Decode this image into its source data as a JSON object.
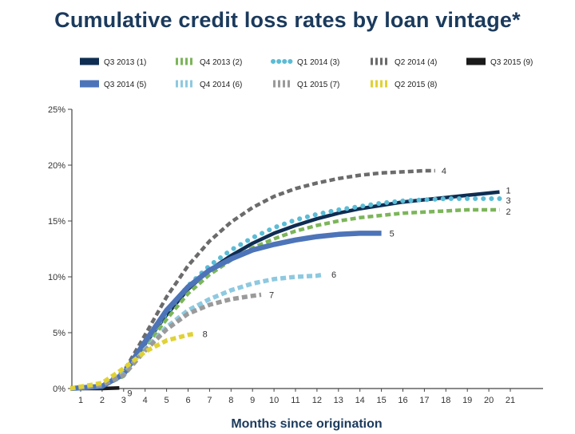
{
  "chart_data": {
    "type": "line",
    "title": "Cumulative credit loss rates by loan vintage*",
    "xlabel": "Months since origination",
    "ylabel": "",
    "x_ticks": [
      "1",
      "2",
      "3",
      "4",
      "5",
      "6",
      "7",
      "8",
      "9",
      "10",
      "11",
      "12",
      "13",
      "14",
      "15",
      "16",
      "17",
      "18",
      "19",
      "20",
      "21"
    ],
    "y_ticks": [
      "0%",
      "5%",
      "10%",
      "15%",
      "20%",
      "25%"
    ],
    "xlim": [
      0.5,
      21.3
    ],
    "ylim": [
      0,
      25
    ],
    "grid": false,
    "legend_position": "top",
    "series": [
      {
        "name": "Q3 2013 (1)",
        "end_label": "1",
        "color": "#0f2d52",
        "style": "solid",
        "width": 4.5,
        "points": [
          [
            0.5,
            0
          ],
          [
            2,
            0.2
          ],
          [
            3,
            1.2
          ],
          [
            4,
            4.0
          ],
          [
            5,
            6.6
          ],
          [
            6,
            8.9
          ],
          [
            7,
            10.6
          ],
          [
            8,
            11.9
          ],
          [
            9,
            13.0
          ],
          [
            10,
            13.9
          ],
          [
            11,
            14.6
          ],
          [
            12,
            15.2
          ],
          [
            13,
            15.7
          ],
          [
            14,
            16.1
          ],
          [
            15,
            16.4
          ],
          [
            16,
            16.7
          ],
          [
            17,
            16.9
          ],
          [
            18,
            17.1
          ],
          [
            19,
            17.3
          ],
          [
            20,
            17.5
          ],
          [
            20.5,
            17.6
          ]
        ]
      },
      {
        "name": "Q4 2013 (2)",
        "end_label": "2",
        "color": "#7cb55a",
        "style": "dash",
        "width": 4.5,
        "points": [
          [
            0.5,
            0
          ],
          [
            2,
            0.2
          ],
          [
            3,
            1.1
          ],
          [
            4,
            3.7
          ],
          [
            5,
            6.2
          ],
          [
            6,
            8.5
          ],
          [
            7,
            10.2
          ],
          [
            8,
            11.5
          ],
          [
            9,
            12.6
          ],
          [
            10,
            13.4
          ],
          [
            11,
            14.1
          ],
          [
            12,
            14.6
          ],
          [
            13,
            15.0
          ],
          [
            14,
            15.3
          ],
          [
            15,
            15.5
          ],
          [
            16,
            15.7
          ],
          [
            17,
            15.8
          ],
          [
            18,
            15.9
          ],
          [
            19,
            16.0
          ],
          [
            20,
            16.0
          ],
          [
            20.5,
            16.0
          ]
        ]
      },
      {
        "name": "Q1 2014 (3)",
        "end_label": "3",
        "color": "#5bbcd6",
        "style": "dot",
        "width": 6,
        "points": [
          [
            0.5,
            0
          ],
          [
            2,
            0.2
          ],
          [
            3,
            1.2
          ],
          [
            4,
            4.1
          ],
          [
            5,
            6.8
          ],
          [
            6,
            9.2
          ],
          [
            7,
            11.0
          ],
          [
            8,
            12.4
          ],
          [
            9,
            13.5
          ],
          [
            10,
            14.4
          ],
          [
            11,
            15.1
          ],
          [
            12,
            15.6
          ],
          [
            13,
            16.0
          ],
          [
            14,
            16.3
          ],
          [
            15,
            16.6
          ],
          [
            16,
            16.8
          ],
          [
            17,
            16.9
          ],
          [
            18,
            17.0
          ],
          [
            19,
            17.0
          ],
          [
            20,
            17.0
          ],
          [
            20.5,
            17.0
          ]
        ]
      },
      {
        "name": "Q2 2014 (4)",
        "end_label": "4",
        "color": "#6b6b6b",
        "style": "dash",
        "width": 4.5,
        "points": [
          [
            0.5,
            0
          ],
          [
            2,
            0.3
          ],
          [
            3,
            1.5
          ],
          [
            4,
            4.8
          ],
          [
            5,
            8.2
          ],
          [
            6,
            11.0
          ],
          [
            7,
            13.2
          ],
          [
            8,
            14.9
          ],
          [
            9,
            16.2
          ],
          [
            10,
            17.2
          ],
          [
            11,
            17.9
          ],
          [
            12,
            18.4
          ],
          [
            13,
            18.8
          ],
          [
            14,
            19.1
          ],
          [
            15,
            19.3
          ],
          [
            16,
            19.4
          ],
          [
            17,
            19.5
          ],
          [
            17.5,
            19.5
          ]
        ]
      },
      {
        "name": "Q3 2015 (9)",
        "end_label": "9",
        "color": "#1a1a1a",
        "style": "solid",
        "width": 4.5,
        "points": [
          [
            0.5,
            0
          ],
          [
            1,
            0
          ],
          [
            2,
            0
          ],
          [
            2.8,
            0.05
          ]
        ]
      },
      {
        "name": "Q3 2014 (5)",
        "end_label": "5",
        "color": "#4d74b8",
        "style": "solid",
        "width": 6.5,
        "points": [
          [
            0.5,
            0
          ],
          [
            2,
            0.2
          ],
          [
            3,
            1.3
          ],
          [
            4,
            4.2
          ],
          [
            5,
            7.0
          ],
          [
            6,
            9.1
          ],
          [
            7,
            10.6
          ],
          [
            8,
            11.6
          ],
          [
            9,
            12.4
          ],
          [
            10,
            12.9
          ],
          [
            11,
            13.3
          ],
          [
            12,
            13.6
          ],
          [
            13,
            13.8
          ],
          [
            14,
            13.9
          ],
          [
            15,
            13.9
          ]
        ]
      },
      {
        "name": "Q4 2014 (6)",
        "end_label": "6",
        "color": "#8ec9e0",
        "style": "dash",
        "width": 5.5,
        "points": [
          [
            0.5,
            0
          ],
          [
            2,
            0.3
          ],
          [
            3,
            1.3
          ],
          [
            4,
            3.5
          ],
          [
            5,
            5.5
          ],
          [
            6,
            7.0
          ],
          [
            7,
            8.0
          ],
          [
            8,
            8.8
          ],
          [
            9,
            9.4
          ],
          [
            10,
            9.8
          ],
          [
            11,
            10.0
          ],
          [
            12,
            10.1
          ],
          [
            12.3,
            10.2
          ]
        ]
      },
      {
        "name": "Q1 2015 (7)",
        "end_label": "7",
        "color": "#9a9a9a",
        "style": "dash",
        "width": 5.5,
        "points": [
          [
            0.5,
            0
          ],
          [
            2,
            0.3
          ],
          [
            3,
            1.2
          ],
          [
            4,
            3.4
          ],
          [
            5,
            5.3
          ],
          [
            6,
            6.7
          ],
          [
            7,
            7.5
          ],
          [
            8,
            8.0
          ],
          [
            9,
            8.3
          ],
          [
            9.4,
            8.4
          ]
        ]
      },
      {
        "name": "Q2 2015 (8)",
        "end_label": "8",
        "color": "#e0d235",
        "style": "dash",
        "width": 5.5,
        "points": [
          [
            0.5,
            0
          ],
          [
            2,
            0.5
          ],
          [
            3,
            1.8
          ],
          [
            4,
            3.3
          ],
          [
            5,
            4.3
          ],
          [
            6,
            4.8
          ],
          [
            6.3,
            4.9
          ]
        ]
      }
    ]
  }
}
